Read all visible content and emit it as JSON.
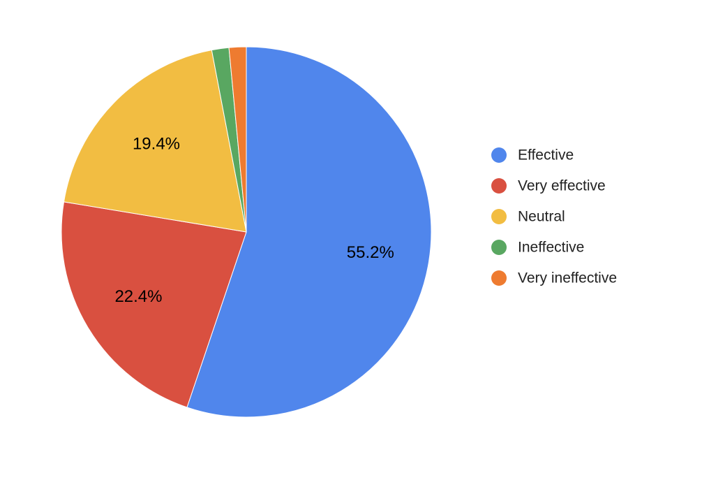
{
  "chart_data": {
    "type": "pie",
    "categories": [
      "Effective",
      "Very effective",
      "Neutral",
      "Ineffective",
      "Very ineffective"
    ],
    "values": [
      55.2,
      22.4,
      19.4,
      1.5,
      1.5
    ],
    "slice_labels": [
      "55.2%",
      "22.4%",
      "19.4%",
      "",
      ""
    ],
    "colors": [
      "#5086EC",
      "#D95040",
      "#F2BD42",
      "#59A761",
      "#EE7B30"
    ],
    "legend_position": "right",
    "start_angle": "top",
    "direction": "clockwise"
  }
}
